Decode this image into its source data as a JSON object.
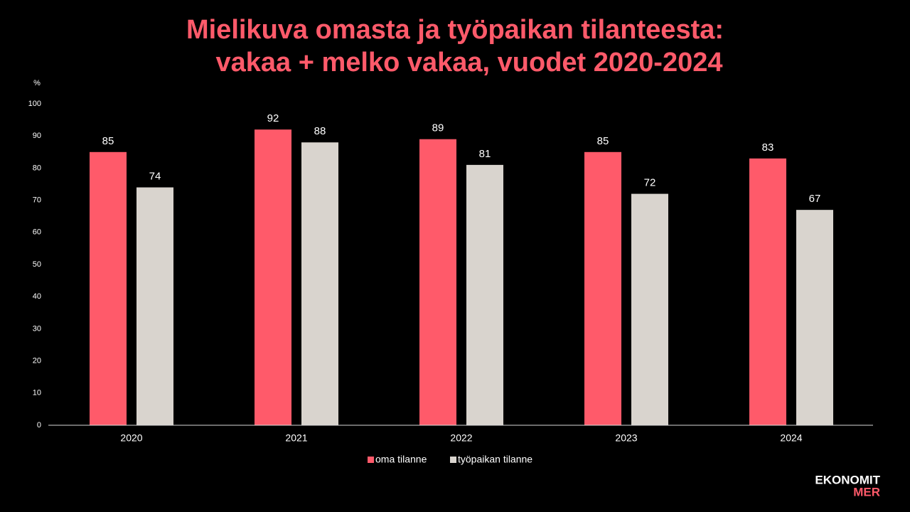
{
  "chart_data": {
    "type": "bar",
    "title": "Mielikuva omasta ja työpaikan tilanteesta:",
    "subtitle": "vakaa + melko vakaa, vuodet 2020-2024",
    "y_label": "%",
    "categories": [
      "2020",
      "2021",
      "2022",
      "2023",
      "2024"
    ],
    "series": [
      {
        "name": "oma tilanne",
        "color": "#ff5a6a",
        "values": [
          85,
          92,
          89,
          85,
          83
        ]
      },
      {
        "name": "työpaikan tilanne",
        "color": "#d9d4ce",
        "values": [
          74,
          88,
          81,
          72,
          67
        ]
      }
    ],
    "ylim": [
      0,
      100
    ],
    "yticks": [
      0,
      10,
      20,
      30,
      40,
      50,
      60,
      70,
      80,
      90,
      100
    ],
    "grid": false,
    "legend": "bottom"
  },
  "logo": {
    "line1": "EKONOMIT",
    "line2": "MER"
  }
}
